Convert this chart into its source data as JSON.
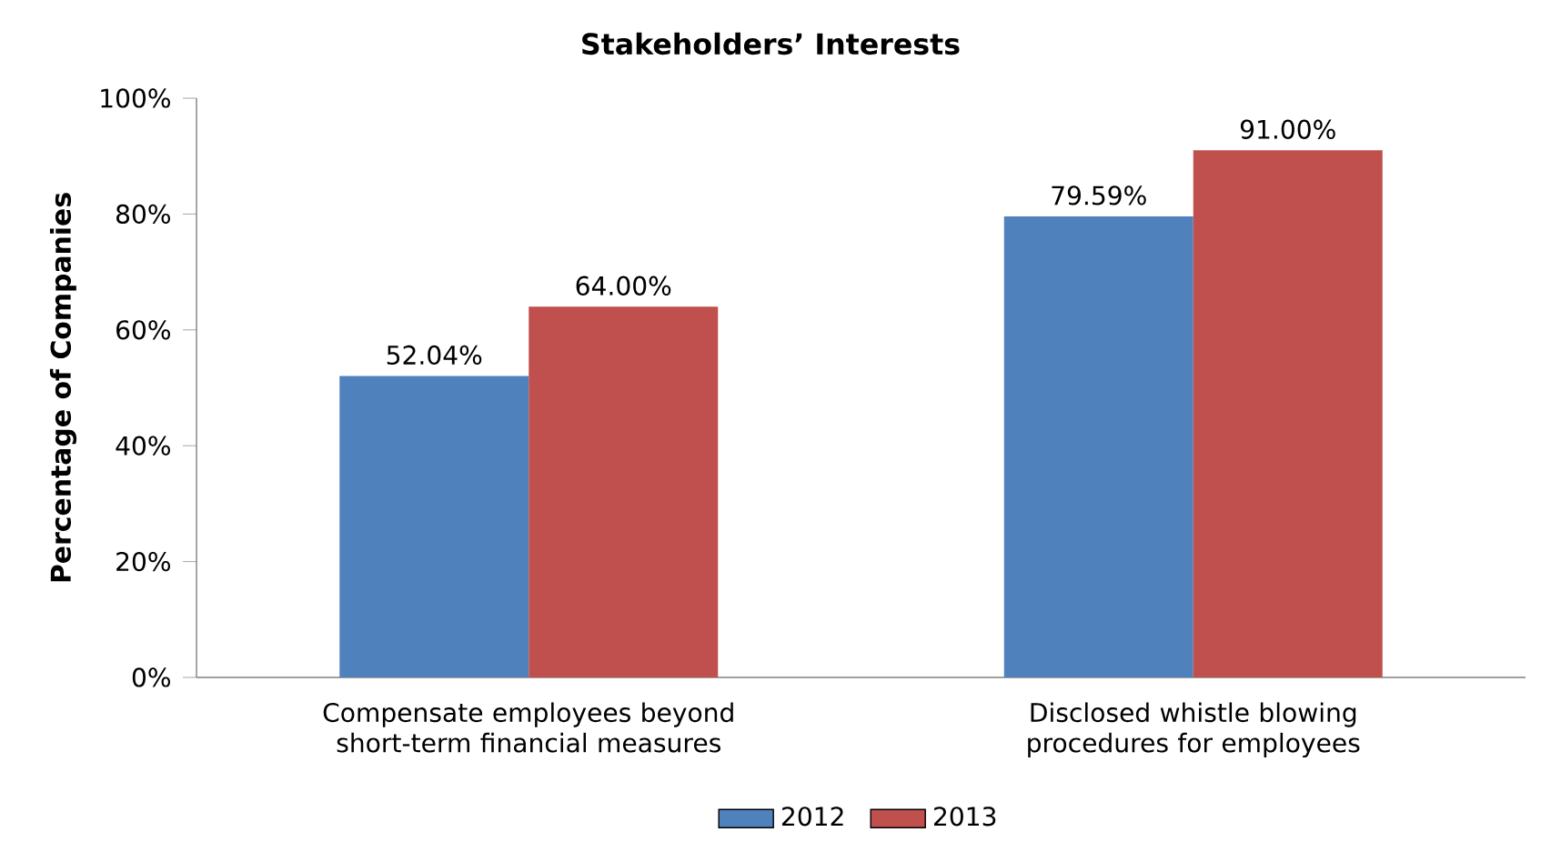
{
  "chart_data": {
    "type": "bar",
    "title": "Stakeholders’ Interests",
    "ylabel": "Percentage of Companies",
    "categories": [
      "Compensate employees beyond short-term financial measures",
      "Disclosed whistle blowing procedures for employees"
    ],
    "series": [
      {
        "name": "2012",
        "color": "#4f81bd",
        "values": [
          52.04,
          79.59
        ],
        "value_labels": [
          "52.04%",
          "79.59%"
        ]
      },
      {
        "name": "2013",
        "color": "#c0504d",
        "values": [
          64,
          91
        ],
        "value_labels": [
          "64.00%",
          "91.00%"
        ]
      }
    ],
    "ylim": [
      0,
      100
    ],
    "yticks": [
      {
        "value": 0,
        "label": "0%"
      },
      {
        "value": 20,
        "label": "20%"
      },
      {
        "value": 40,
        "label": "40%"
      },
      {
        "value": 60,
        "label": "60%"
      },
      {
        "value": 80,
        "label": "80%"
      },
      {
        "value": 100,
        "label": "100%"
      }
    ],
    "grid": false,
    "legend": "bottom"
  }
}
